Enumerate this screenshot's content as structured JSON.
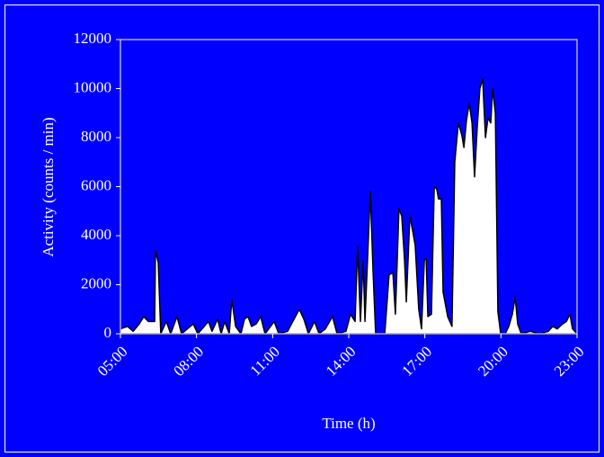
{
  "chart_data": {
    "type": "area",
    "x_label": "Time (h)",
    "y_label": "Activity (counts / min)",
    "x": [
      5.0,
      5.28,
      5.5,
      5.74,
      5.92,
      6.1,
      6.35,
      6.38,
      6.49,
      6.59,
      6.81,
      6.98,
      7.23,
      7.41,
      7.87,
      8.05,
      8.47,
      8.61,
      8.83,
      8.97,
      9.11,
      9.29,
      9.39,
      9.54,
      9.75,
      9.89,
      10.03,
      10.17,
      10.35,
      10.53,
      10.7,
      11.06,
      11.24,
      11.59,
      12.05,
      12.23,
      12.41,
      12.65,
      12.83,
      13.08,
      13.36,
      13.54,
      13.89,
      14.07,
      14.25,
      14.35,
      14.46,
      14.57,
      14.64,
      14.74,
      14.85,
      14.96,
      15.06,
      15.42,
      15.59,
      15.74,
      15.84,
      15.98,
      16.09,
      16.2,
      16.27,
      16.41,
      16.52,
      16.62,
      16.76,
      16.87,
      16.98,
      17.05,
      17.12,
      17.26,
      17.37,
      17.47,
      17.54,
      17.65,
      17.72,
      17.9,
      18.07,
      18.18,
      18.32,
      18.46,
      18.54,
      18.64,
      18.75,
      18.86,
      18.96,
      19.07,
      19.17,
      19.28,
      19.39,
      19.49,
      19.6,
      19.67,
      19.78,
      19.88,
      19.99,
      20.17,
      20.31,
      20.45,
      20.56,
      20.66,
      20.8,
      21.16,
      21.51,
      21.87,
      22.04,
      22.22,
      22.43,
      22.58,
      22.72,
      22.82,
      23.0
    ],
    "series": [
      {
        "color": "#ffffff",
        "values": [
          200,
          300,
          100,
          400,
          700,
          500,
          500,
          3400,
          2900,
          0,
          500,
          0,
          700,
          0,
          400,
          0,
          500,
          100,
          600,
          0,
          500,
          0,
          1400,
          300,
          0,
          600,
          700,
          300,
          400,
          700,
          0,
          500,
          0,
          100,
          1000,
          600,
          0,
          500,
          0,
          200,
          700,
          0,
          100,
          800,
          500,
          3600,
          500,
          3000,
          500,
          3000,
          5800,
          2500,
          0,
          0,
          2400,
          2500,
          800,
          5100,
          4800,
          3000,
          1300,
          4800,
          4200,
          3600,
          1000,
          200,
          3000,
          3100,
          700,
          800,
          6000,
          5900,
          5500,
          5500,
          1700,
          700,
          300,
          7000,
          8600,
          8100,
          7600,
          8700,
          9400,
          8600,
          6400,
          8500,
          10000,
          10400,
          8000,
          8800,
          8600,
          10000,
          9000,
          900,
          0,
          0,
          300,
          800,
          1500,
          400,
          0,
          100,
          0,
          100,
          300,
          200,
          400,
          500,
          800,
          200,
          0
        ]
      }
    ],
    "xlim": [
      5,
      23
    ],
    "xticks": [
      {
        "value": 5,
        "label": "05:00"
      },
      {
        "value": 8,
        "label": "08:00"
      },
      {
        "value": 11,
        "label": "11:00"
      },
      {
        "value": 14,
        "label": "14:00"
      },
      {
        "value": 17,
        "label": "17:00"
      },
      {
        "value": 20,
        "label": "20:00"
      },
      {
        "value": 23,
        "label": "23:00"
      }
    ],
    "ylim": [
      0,
      12000
    ],
    "yticks": [
      0,
      2000,
      4000,
      6000,
      8000,
      10000,
      12000
    ]
  }
}
